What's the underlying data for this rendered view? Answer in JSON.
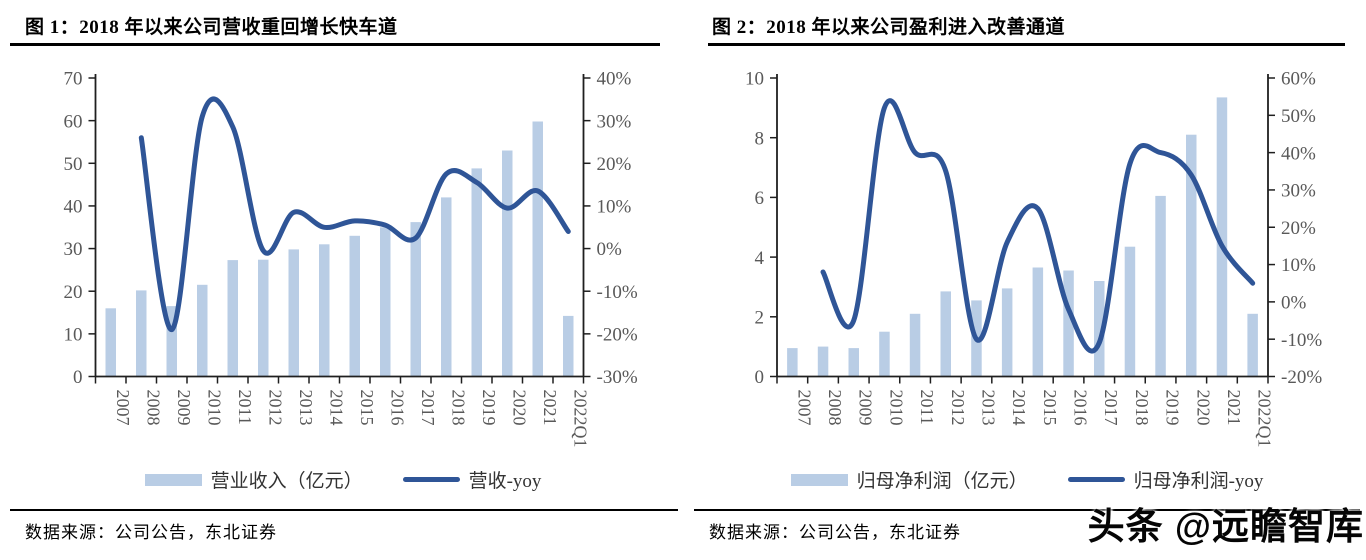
{
  "watermark": {
    "text": "头条 @远瞻智库"
  },
  "figures": [
    {
      "source": "数据来源：公司公告，东北证券"
    },
    {
      "source": "数据来源：公司公告，东北证券"
    }
  ],
  "colors": {
    "bar": "#B9CDE5",
    "line": "#2F5597",
    "axis_line": "#1F1F1F",
    "tick_label": "#595959"
  },
  "chart_data": [
    {
      "type": "bar",
      "subtype": "combo-bar-line-dual-axis",
      "title": "图 1：2018 年以来公司营收重回增长快车道",
      "categories": [
        "2007",
        "2008",
        "2009",
        "2010",
        "2011",
        "2012",
        "2013",
        "2014",
        "2015",
        "2016",
        "2017",
        "2018",
        "2019",
        "2020",
        "2021",
        "2022Q1"
      ],
      "series": [
        {
          "name": "营业收入（亿元）",
          "type": "bar",
          "axis": "left",
          "values": [
            16,
            20.2,
            16.5,
            21.5,
            27.3,
            27.4,
            29.8,
            31,
            33,
            35,
            36.2,
            42,
            48.8,
            53,
            59.8,
            14.2
          ]
        },
        {
          "name": "营收-yoy",
          "type": "line",
          "axis": "right",
          "unit": "%",
          "values": [
            null,
            26,
            -19,
            31,
            28.5,
            -0.5,
            8.5,
            5,
            6.5,
            5.5,
            2.5,
            17.5,
            15.5,
            9.5,
            13.5,
            4
          ]
        }
      ],
      "left_axis": {
        "min": 0,
        "max": 70,
        "step": 10,
        "unit": ""
      },
      "right_axis": {
        "min": -30,
        "max": 40,
        "step": 10,
        "unit": "%"
      },
      "grid": false,
      "legend_position": "bottom",
      "x_label_rotation": 90
    },
    {
      "type": "bar",
      "subtype": "combo-bar-line-dual-axis",
      "title": "图 2：2018 年以来公司盈利进入改善通道",
      "categories": [
        "2007",
        "2008",
        "2009",
        "2010",
        "2011",
        "2012",
        "2013",
        "2014",
        "2015",
        "2016",
        "2017",
        "2018",
        "2019",
        "2020",
        "2021",
        "2022Q1"
      ],
      "series": [
        {
          "name": "归母净利润（亿元）",
          "type": "bar",
          "axis": "left",
          "values": [
            0.95,
            1.0,
            0.95,
            1.5,
            2.1,
            2.85,
            2.55,
            2.95,
            3.65,
            3.55,
            3.2,
            4.35,
            6.05,
            8.1,
            9.35,
            2.1
          ]
        },
        {
          "name": "归母净利润-yoy",
          "type": "line",
          "axis": "right",
          "unit": "%",
          "values": [
            null,
            8,
            -5,
            52,
            40,
            35,
            -10,
            16,
            25,
            -2,
            -11,
            37,
            40,
            34,
            15,
            5
          ]
        }
      ],
      "left_axis": {
        "min": 0,
        "max": 10,
        "step": 2,
        "unit": ""
      },
      "right_axis": {
        "min": -20,
        "max": 60,
        "step": 10,
        "unit": "%"
      },
      "grid": false,
      "legend_position": "bottom",
      "x_label_rotation": 90
    }
  ]
}
